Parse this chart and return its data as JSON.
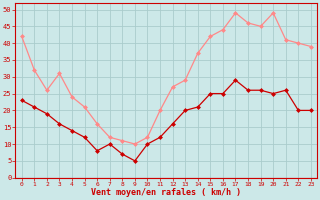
{
  "x": [
    0,
    1,
    2,
    3,
    4,
    5,
    6,
    7,
    8,
    9,
    10,
    11,
    12,
    13,
    14,
    15,
    16,
    17,
    18,
    19,
    20,
    21,
    22,
    23
  ],
  "wind_avg": [
    23,
    21,
    19,
    16,
    14,
    12,
    8,
    10,
    7,
    5,
    10,
    12,
    16,
    20,
    21,
    25,
    25,
    29,
    26,
    26,
    25,
    26,
    20,
    20
  ],
  "wind_gust": [
    42,
    32,
    26,
    31,
    24,
    21,
    16,
    12,
    11,
    10,
    12,
    20,
    27,
    29,
    37,
    42,
    44,
    49,
    46,
    45,
    49,
    41,
    40,
    39
  ],
  "bg_color": "#cce8e8",
  "grid_color": "#aacccc",
  "avg_color": "#cc0000",
  "gust_color": "#ff8888",
  "xlabel": "Vent moyen/en rafales ( km/h )",
  "xlabel_color": "#cc0000",
  "tick_color": "#cc0000",
  "ylim": [
    0,
    52
  ],
  "yticks": [
    0,
    5,
    10,
    15,
    20,
    25,
    30,
    35,
    40,
    45,
    50
  ],
  "marker_size": 2.5,
  "line_width": 0.9
}
